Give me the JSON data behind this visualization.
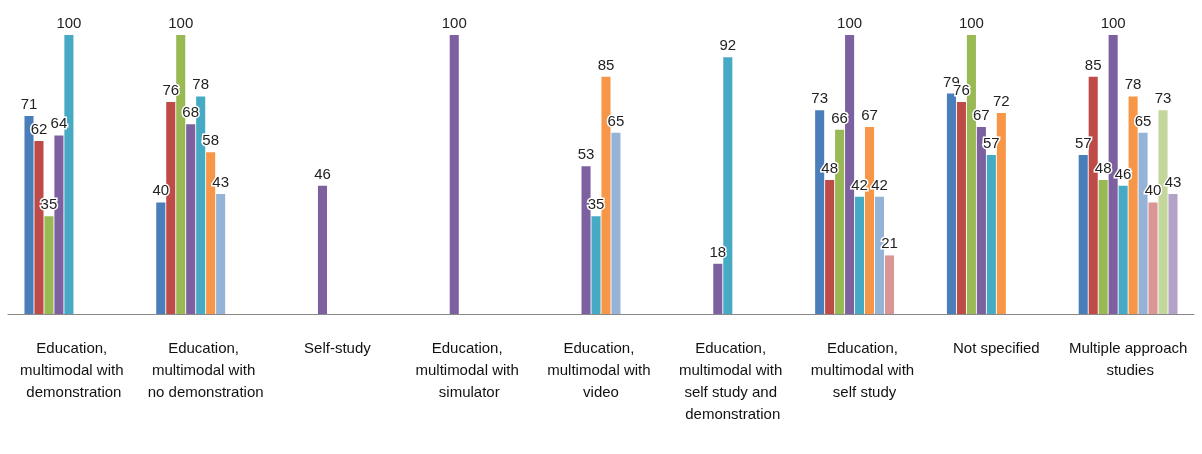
{
  "chart_data": {
    "type": "bar",
    "categories": [
      "Education, multimodal with demonstration",
      "Education, multimodal with no demonstration",
      "Self-study",
      "Education, multimodal with simulator",
      "Education, multimodal with video",
      "Education, multimodal with self study and demonstration",
      "Education, multimodal with self study",
      "Not specified",
      "Multiple approach studies"
    ],
    "series": [
      {
        "color": "#4a7ebb",
        "values": [
          71,
          40,
          null,
          null,
          null,
          null,
          73,
          79,
          57
        ]
      },
      {
        "color": "#be4b48",
        "values": [
          62,
          76,
          null,
          null,
          null,
          null,
          48,
          76,
          85
        ]
      },
      {
        "color": "#98b954",
        "values": [
          35,
          100,
          null,
          null,
          null,
          null,
          66,
          100,
          48
        ]
      },
      {
        "color": "#7d60a0",
        "values": [
          64,
          68,
          46,
          100,
          53,
          18,
          100,
          67,
          100
        ]
      },
      {
        "color": "#46aac5",
        "values": [
          100,
          78,
          null,
          null,
          35,
          92,
          42,
          57,
          46
        ]
      },
      {
        "color": "#f79646",
        "values": [
          null,
          58,
          null,
          null,
          85,
          null,
          67,
          72,
          78
        ]
      },
      {
        "color": "#95b3d7",
        "values": [
          null,
          43,
          null,
          null,
          65,
          null,
          42,
          null,
          65
        ]
      },
      {
        "color": "#d99694",
        "values": [
          null,
          null,
          null,
          null,
          null,
          null,
          21,
          null,
          40
        ]
      },
      {
        "color": "#c3d69b",
        "values": [
          null,
          null,
          null,
          null,
          null,
          null,
          null,
          null,
          73
        ]
      },
      {
        "color": "#b3a2c7",
        "values": [
          null,
          null,
          null,
          null,
          null,
          null,
          null,
          null,
          43
        ]
      }
    ],
    "data_labels": true
  }
}
